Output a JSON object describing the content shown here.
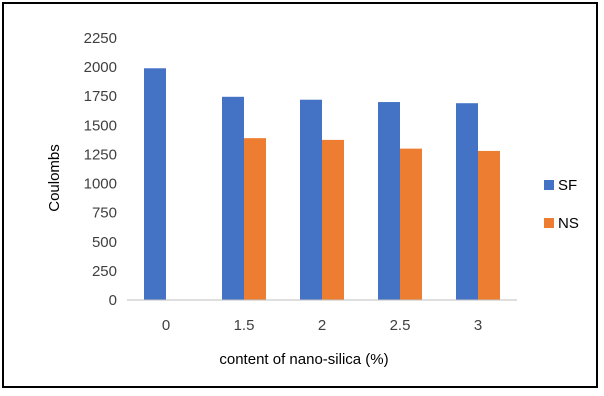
{
  "chart_data": {
    "type": "bar",
    "title": "",
    "xlabel": "content of nano-silica (%)",
    "ylabel": "Coulombs",
    "categories": [
      "0",
      "1.5",
      "2",
      "2.5",
      "3"
    ],
    "series": [
      {
        "name": "SF",
        "color": "#4472c4",
        "values": [
          1990,
          1745,
          1720,
          1700,
          1690
        ]
      },
      {
        "name": "NS",
        "color": "#ed7d31",
        "values": [
          null,
          1390,
          1375,
          1300,
          1280
        ]
      }
    ],
    "ylim": [
      0,
      2250
    ],
    "yticks": [
      0,
      250,
      500,
      750,
      1000,
      1250,
      1500,
      1750,
      2000,
      2250
    ],
    "grid": false,
    "legend_position": "right"
  }
}
